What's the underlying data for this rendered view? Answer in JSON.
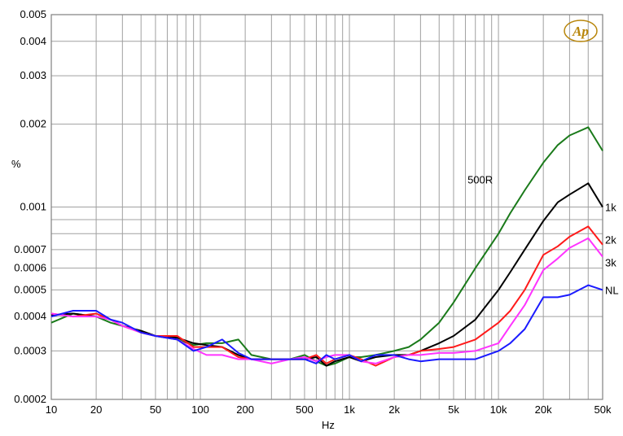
{
  "chart_data": {
    "type": "line",
    "xlabel": "Hz",
    "ylabel": "%",
    "xscale": "log",
    "yscale": "log",
    "xlim": [
      10,
      50000
    ],
    "ylim": [
      0.0002,
      0.005
    ],
    "grid": true,
    "logo_text": "Ap",
    "x_ticks": [
      {
        "value": 10,
        "label": "10"
      },
      {
        "value": 20,
        "label": "20"
      },
      {
        "value": 50,
        "label": "50"
      },
      {
        "value": 100,
        "label": "100"
      },
      {
        "value": 200,
        "label": "200"
      },
      {
        "value": 500,
        "label": "500"
      },
      {
        "value": 1000,
        "label": "1k"
      },
      {
        "value": 2000,
        "label": "2k"
      },
      {
        "value": 5000,
        "label": "5k"
      },
      {
        "value": 10000,
        "label": "10k"
      },
      {
        "value": 20000,
        "label": "20k"
      },
      {
        "value": 50000,
        "label": "50k"
      }
    ],
    "y_ticks": [
      {
        "value": 0.005,
        "label": "0.005"
      },
      {
        "value": 0.004,
        "label": "0.004"
      },
      {
        "value": 0.003,
        "label": "0.003"
      },
      {
        "value": 0.002,
        "label": "0.002"
      },
      {
        "value": 0.001,
        "label": "0.001"
      },
      {
        "value": 0.0007,
        "label": "0.0007"
      },
      {
        "value": 0.0006,
        "label": "0.0006"
      },
      {
        "value": 0.0005,
        "label": "0.0005"
      },
      {
        "value": 0.0004,
        "label": "0.0004"
      },
      {
        "value": 0.0003,
        "label": "0.0003"
      },
      {
        "value": 0.0002,
        "label": "0.0002"
      }
    ],
    "series": [
      {
        "name": "500R",
        "color": "#1a7a1a",
        "x": [
          10,
          14,
          20,
          25,
          30,
          40,
          50,
          70,
          90,
          110,
          140,
          180,
          220,
          300,
          400,
          500,
          600,
          700,
          800,
          1000,
          1200,
          1500,
          2000,
          2500,
          3000,
          4000,
          5000,
          7000,
          10000,
          12000,
          15000,
          20000,
          25000,
          30000,
          40000,
          50000
        ],
        "values": [
          0.00038,
          0.00041,
          0.0004,
          0.00038,
          0.00037,
          0.000355,
          0.00034,
          0.00033,
          0.000315,
          0.00032,
          0.00032,
          0.00033,
          0.00029,
          0.00028,
          0.00028,
          0.00029,
          0.000275,
          0.000265,
          0.00027,
          0.000285,
          0.000285,
          0.00029,
          0.0003,
          0.00031,
          0.00033,
          0.00038,
          0.00045,
          0.0006,
          0.0008,
          0.00095,
          0.00115,
          0.00145,
          0.00168,
          0.00182,
          0.00195,
          0.0016
        ],
        "label_x": 2000
      },
      {
        "name": "1k",
        "color": "#000000",
        "x": [
          10,
          14,
          20,
          25,
          30,
          40,
          50,
          70,
          90,
          110,
          140,
          180,
          220,
          300,
          400,
          500,
          600,
          700,
          800,
          1000,
          1200,
          1500,
          2000,
          2500,
          3000,
          4000,
          5000,
          7000,
          10000,
          12000,
          15000,
          20000,
          25000,
          30000,
          40000,
          50000
        ],
        "values": [
          0.000405,
          0.00041,
          0.0004,
          0.00039,
          0.00037,
          0.000355,
          0.00034,
          0.000335,
          0.00032,
          0.000315,
          0.00031,
          0.00029,
          0.00028,
          0.00028,
          0.00028,
          0.00028,
          0.000285,
          0.000265,
          0.000275,
          0.000285,
          0.000275,
          0.000285,
          0.00029,
          0.00029,
          0.0003,
          0.00032,
          0.00034,
          0.00039,
          0.0005,
          0.00058,
          0.0007,
          0.00089,
          0.00104,
          0.00111,
          0.00122,
          0.001
        ],
        "label_x": 50000
      },
      {
        "name": "2k",
        "color": "#ff1a1a",
        "x": [
          10,
          14,
          20,
          25,
          30,
          40,
          50,
          70,
          90,
          110,
          140,
          180,
          220,
          300,
          400,
          500,
          600,
          700,
          800,
          1000,
          1200,
          1500,
          2000,
          2500,
          3000,
          4000,
          5000,
          7000,
          10000,
          12000,
          15000,
          20000,
          25000,
          30000,
          40000,
          50000
        ],
        "values": [
          0.00041,
          0.0004,
          0.00041,
          0.00039,
          0.00037,
          0.00035,
          0.00034,
          0.00034,
          0.00031,
          0.00031,
          0.00031,
          0.000285,
          0.00028,
          0.00028,
          0.00028,
          0.00028,
          0.00029,
          0.00027,
          0.00028,
          0.00029,
          0.00028,
          0.000265,
          0.000285,
          0.00029,
          0.0003,
          0.000305,
          0.00031,
          0.00033,
          0.00038,
          0.00042,
          0.0005,
          0.00067,
          0.00072,
          0.00078,
          0.00085,
          0.00073
        ],
        "label_x": 50000
      },
      {
        "name": "3k",
        "color": "#ff33ff",
        "x": [
          10,
          14,
          20,
          25,
          30,
          40,
          50,
          70,
          90,
          110,
          140,
          180,
          220,
          300,
          400,
          500,
          600,
          700,
          800,
          1000,
          1200,
          1500,
          2000,
          2500,
          3000,
          4000,
          5000,
          7000,
          10000,
          12000,
          15000,
          20000,
          25000,
          30000,
          40000,
          50000
        ],
        "values": [
          0.00041,
          0.0004,
          0.0004,
          0.00039,
          0.00037,
          0.00035,
          0.00034,
          0.00033,
          0.000305,
          0.00029,
          0.00029,
          0.00028,
          0.00028,
          0.00027,
          0.00028,
          0.000285,
          0.000275,
          0.000285,
          0.00029,
          0.00029,
          0.000275,
          0.00027,
          0.000285,
          0.00029,
          0.00029,
          0.000295,
          0.000295,
          0.0003,
          0.00032,
          0.00037,
          0.00044,
          0.00059,
          0.00065,
          0.00071,
          0.00077,
          0.00066
        ],
        "label_x": 50000
      },
      {
        "name": "NL",
        "color": "#1a1aff",
        "x": [
          10,
          14,
          20,
          25,
          30,
          40,
          50,
          70,
          90,
          110,
          140,
          180,
          220,
          300,
          400,
          500,
          600,
          700,
          800,
          1000,
          1200,
          1500,
          2000,
          2500,
          3000,
          4000,
          5000,
          7000,
          10000,
          12000,
          15000,
          20000,
          25000,
          30000,
          40000,
          50000
        ],
        "values": [
          0.0004,
          0.00042,
          0.00042,
          0.00039,
          0.00038,
          0.00035,
          0.00034,
          0.00033,
          0.0003,
          0.00031,
          0.00033,
          0.000295,
          0.00028,
          0.00028,
          0.00028,
          0.00028,
          0.00027,
          0.00029,
          0.00028,
          0.00029,
          0.000275,
          0.00029,
          0.00029,
          0.00028,
          0.000275,
          0.00028,
          0.00028,
          0.00028,
          0.0003,
          0.00032,
          0.00036,
          0.00047,
          0.00047,
          0.00048,
          0.00052,
          0.0005
        ],
        "label_x": 50000
      }
    ]
  }
}
